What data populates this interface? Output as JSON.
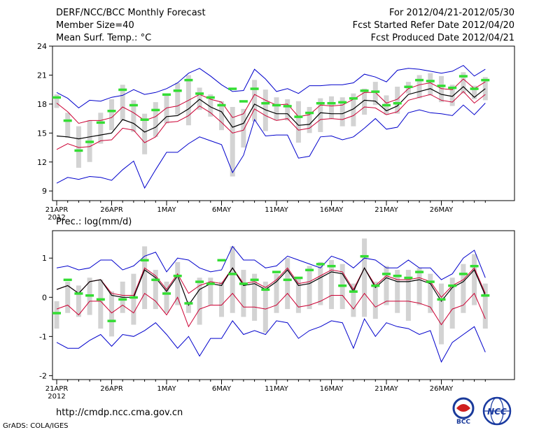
{
  "header": {
    "left": [
      "DERF/NCC/BCC Monthly Forecast",
      "Member Size=40",
      "Mean Surf. Temp.: °C"
    ],
    "right": [
      "For 2012/04/21-2012/05/30",
      "Fcst Started Refer Date 2012/04/20",
      "Fcst Produced Date 2012/04/21"
    ]
  },
  "lower_title": "Prec.: log(mm/d)",
  "footer": {
    "url": "http://cmdp.ncc.cma.gov.cn",
    "credit": "GrADS: COLA/IGES"
  },
  "logos": {
    "bcc": "BCC",
    "ncc": "NCC"
  },
  "colors": {
    "max_min": "#0000cc",
    "mean": "#000000",
    "spread": "#cc0033",
    "green": "#33dd33",
    "box": "#d3d3d3"
  },
  "chart_data": [
    {
      "type": "line",
      "title": "Mean Surf. Temp.: °C",
      "ylim": [
        8,
        24
      ],
      "yticks": [
        9,
        12,
        15,
        18,
        21,
        24
      ],
      "xticks": [
        {
          "day": 0,
          "label": "21APR",
          "sub": "2012"
        },
        {
          "day": 5,
          "label": "26APR"
        },
        {
          "day": 10,
          "label": "1MAY"
        },
        {
          "day": 15,
          "label": "6MAY"
        },
        {
          "day": 20,
          "label": "11MAY"
        },
        {
          "day": 25,
          "label": "16MAY"
        },
        {
          "day": 30,
          "label": "21MAY"
        },
        {
          "day": 35,
          "label": "26MAY"
        }
      ],
      "max": [
        19.2,
        18.6,
        17.6,
        18.4,
        18.3,
        18.7,
        18.9,
        19.5,
        19.0,
        19.2,
        19.6,
        20.2,
        21.2,
        21.7,
        20.9,
        20.0,
        19.3,
        19.4,
        21.6,
        20.6,
        19.3,
        19.6,
        19.1,
        19.9,
        19.9,
        20.0,
        20.0,
        20.2,
        21.1,
        20.8,
        20.3,
        21.5,
        21.7,
        21.6,
        21.4,
        21.2,
        21.4,
        22.0,
        20.9,
        21.6
      ],
      "plus_sd": [
        18.1,
        17.2,
        16.0,
        16.3,
        16.3,
        16.6,
        17.7,
        17.1,
        16.3,
        16.7,
        17.6,
        17.8,
        18.4,
        19.0,
        18.5,
        18.2,
        16.6,
        17.0,
        19.0,
        18.4,
        17.9,
        18.0,
        16.7,
        16.9,
        17.9,
        17.8,
        17.9,
        18.5,
        19.2,
        19.2,
        18.1,
        18.5,
        19.6,
        20.0,
        20.2,
        19.6,
        19.5,
        20.6,
        19.6,
        20.3
      ],
      "mean": [
        14.7,
        14.6,
        14.4,
        14.6,
        14.8,
        15.0,
        16.4,
        16.0,
        15.1,
        15.6,
        16.7,
        16.8,
        17.5,
        18.5,
        17.7,
        17.2,
        15.6,
        16.0,
        18.0,
        17.4,
        17.0,
        17.0,
        15.8,
        15.9,
        17.1,
        17.0,
        17.0,
        17.5,
        18.4,
        18.3,
        17.3,
        17.8,
        19.0,
        19.3,
        19.6,
        19.0,
        18.8,
        19.8,
        18.7,
        19.6
      ],
      "minus_sd": [
        13.3,
        13.9,
        13.5,
        13.6,
        14.2,
        14.3,
        15.5,
        15.3,
        14.0,
        14.6,
        16.1,
        16.2,
        16.8,
        17.8,
        17.1,
        16.1,
        15.0,
        15.3,
        17.5,
        16.8,
        16.3,
        16.5,
        15.3,
        15.5,
        16.4,
        16.5,
        16.4,
        16.8,
        17.7,
        17.6,
        16.9,
        17.2,
        18.4,
        18.7,
        19.0,
        18.4,
        18.2,
        19.3,
        18.1,
        19.0
      ],
      "min": [
        9.8,
        10.4,
        10.2,
        10.5,
        10.4,
        10.1,
        11.2,
        12.1,
        9.3,
        11.2,
        13.0,
        13.0,
        13.9,
        14.6,
        14.2,
        13.8,
        10.9,
        12.7,
        16.4,
        14.7,
        14.8,
        14.8,
        12.4,
        12.6,
        14.6,
        14.7,
        14.3,
        14.6,
        15.5,
        16.5,
        15.4,
        15.6,
        17.1,
        17.4,
        17.1,
        17.0,
        16.8,
        17.9,
        16.9,
        18.1
      ],
      "box_top": [
        19.0,
        17.1,
        15.7,
        16.3,
        17.1,
        18.5,
        20.0,
        18.4,
        17.0,
        18.2,
        19.0,
        20.2,
        21.0,
        19.7,
        19.0,
        18.3,
        17.7,
        17.5,
        20.5,
        19.5,
        18.7,
        18.5,
        18.3,
        17.7,
        18.6,
        18.8,
        18.7,
        19.1,
        19.6,
        20.3,
        18.9,
        19.8,
        20.3,
        21.0,
        21.2,
        20.9,
        20.0,
        21.3,
        19.9,
        20.8
      ],
      "box_bot": [
        17.6,
        14.5,
        11.4,
        12.0,
        13.9,
        15.3,
        16.3,
        15.1,
        12.8,
        14.6,
        16.0,
        16.9,
        15.8,
        17.4,
        16.7,
        15.3,
        10.5,
        13.5,
        16.2,
        15.2,
        16.3,
        16.3,
        14.0,
        15.0,
        15.1,
        16.5,
        15.7,
        15.7,
        16.9,
        17.9,
        16.9,
        17.0,
        19.1,
        18.6,
        18.9,
        18.2,
        17.8,
        19.1,
        18.5,
        18.4
      ],
      "green": [
        18.7,
        16.3,
        13.2,
        14.1,
        16.1,
        17.3,
        19.5,
        17.9,
        16.4,
        17.4,
        19.0,
        19.4,
        20.5,
        19.1,
        18.7,
        17.9,
        19.6,
        18.3,
        19.6,
        18.1,
        17.9,
        17.8,
        16.7,
        17.1,
        18.1,
        18.1,
        18.2,
        18.6,
        19.4,
        19.3,
        17.9,
        18.1,
        19.8,
        20.5,
        20.4,
        19.9,
        19.7,
        20.9,
        19.6,
        20.5
      ]
    },
    {
      "type": "line",
      "title": "Prec.: log(mm/d)",
      "ylim": [
        -2.1,
        1.7
      ],
      "yticks": [
        -2,
        -1,
        0,
        1
      ],
      "xticks": [
        {
          "day": 0,
          "label": "21APR",
          "sub": "2012"
        },
        {
          "day": 5,
          "label": "26APR"
        },
        {
          "day": 10,
          "label": "1MAY"
        },
        {
          "day": 15,
          "label": "6MAY"
        },
        {
          "day": 20,
          "label": "11MAY"
        },
        {
          "day": 25,
          "label": "16MAY"
        },
        {
          "day": 30,
          "label": "21MAY"
        },
        {
          "day": 35,
          "label": "26MAY"
        }
      ],
      "max": [
        0.75,
        0.8,
        0.7,
        0.75,
        0.95,
        0.95,
        0.7,
        0.8,
        1.05,
        1.15,
        0.65,
        1.0,
        0.95,
        0.75,
        0.65,
        0.7,
        1.3,
        0.95,
        0.95,
        0.75,
        0.8,
        1.05,
        0.95,
        0.85,
        0.75,
        1.05,
        0.95,
        0.75,
        1.0,
        0.95,
        0.75,
        0.75,
        0.95,
        0.75,
        0.75,
        0.45,
        0.6,
        1.0,
        1.2,
        0.5
      ],
      "plus_sd": [
        0.2,
        0.3,
        0.1,
        0.4,
        0.45,
        0.1,
        0.05,
        0.05,
        0.75,
        0.55,
        0.2,
        0.6,
        0.1,
        0.3,
        0.4,
        0.35,
        0.75,
        0.35,
        0.4,
        0.25,
        0.45,
        0.75,
        0.35,
        0.4,
        0.55,
        0.7,
        0.65,
        0.2,
        0.75,
        0.3,
        0.55,
        0.45,
        0.45,
        0.5,
        0.4,
        0.0,
        0.3,
        0.45,
        0.75,
        0.1
      ],
      "mean": [
        0.2,
        0.3,
        0.1,
        0.4,
        0.45,
        0.05,
        0.0,
        0.0,
        0.7,
        0.5,
        0.15,
        0.55,
        -0.2,
        0.2,
        0.35,
        0.3,
        0.75,
        0.3,
        0.35,
        0.2,
        0.4,
        0.7,
        0.3,
        0.35,
        0.5,
        0.65,
        0.6,
        0.15,
        0.75,
        0.25,
        0.5,
        0.4,
        0.4,
        0.45,
        0.35,
        -0.1,
        0.25,
        0.4,
        0.7,
        0.05
      ],
      "minus_sd": [
        -0.3,
        -0.2,
        -0.45,
        -0.1,
        -0.1,
        -0.4,
        -0.2,
        -0.4,
        0.1,
        -0.1,
        -0.45,
        0.0,
        -0.75,
        -0.3,
        -0.2,
        -0.2,
        0.1,
        -0.25,
        -0.25,
        -0.3,
        -0.2,
        0.1,
        -0.25,
        -0.2,
        -0.1,
        0.05,
        0.05,
        -0.3,
        0.1,
        -0.25,
        -0.1,
        -0.1,
        -0.1,
        -0.15,
        -0.25,
        -0.7,
        -0.3,
        -0.2,
        0.1,
        -0.55
      ],
      "min": [
        -1.15,
        -1.3,
        -1.3,
        -1.1,
        -0.95,
        -1.25,
        -0.95,
        -1.0,
        -0.85,
        -0.65,
        -0.95,
        -1.3,
        -1.0,
        -1.5,
        -1.05,
        -1.05,
        -0.6,
        -0.95,
        -0.85,
        -0.95,
        -0.6,
        -0.65,
        -1.05,
        -0.85,
        -0.75,
        -0.6,
        -0.65,
        -1.3,
        -0.55,
        -1.0,
        -0.65,
        -0.75,
        -0.8,
        -0.95,
        -0.85,
        -1.65,
        -1.15,
        -0.95,
        -0.75,
        -1.4
      ],
      "box_top": [
        -0.1,
        0.4,
        0.3,
        0.5,
        0.45,
        0.15,
        0.4,
        0.6,
        1.3,
        0.7,
        0.4,
        0.9,
        -0.1,
        0.5,
        0.5,
        0.4,
        1.3,
        0.7,
        0.6,
        0.4,
        0.6,
        1.0,
        0.5,
        0.8,
        0.9,
        0.95,
        0.85,
        0.35,
        1.5,
        0.4,
        0.8,
        0.7,
        0.7,
        0.75,
        0.6,
        0.35,
        0.5,
        0.85,
        1.1,
        0.35
      ],
      "box_bot": [
        -0.8,
        -0.4,
        -0.5,
        -0.45,
        -0.8,
        -1.0,
        -0.4,
        -0.7,
        -0.3,
        -0.3,
        -0.4,
        -0.2,
        -0.4,
        -0.7,
        -0.2,
        -0.5,
        -0.4,
        -0.5,
        -0.6,
        -0.9,
        -0.4,
        -0.3,
        -0.4,
        -0.3,
        -0.2,
        -0.3,
        -0.3,
        -0.5,
        -0.5,
        -0.55,
        -0.2,
        -0.4,
        -0.6,
        -0.2,
        -0.4,
        -1.2,
        -0.8,
        -0.4,
        -0.2,
        -0.8
      ],
      "green": [
        -0.4,
        0.45,
        0.1,
        0.05,
        -0.05,
        -0.6,
        -0.05,
        0.0,
        0.95,
        0.45,
        0.1,
        0.55,
        -0.15,
        0.4,
        0.35,
        0.95,
        0.6,
        0.35,
        0.45,
        0.2,
        0.65,
        0.45,
        0.5,
        0.7,
        0.85,
        0.8,
        0.3,
        0.15,
        1.05,
        0.3,
        0.6,
        0.55,
        0.5,
        0.65,
        0.4,
        -0.05,
        0.3,
        0.6,
        0.8,
        0.05
      ]
    }
  ]
}
